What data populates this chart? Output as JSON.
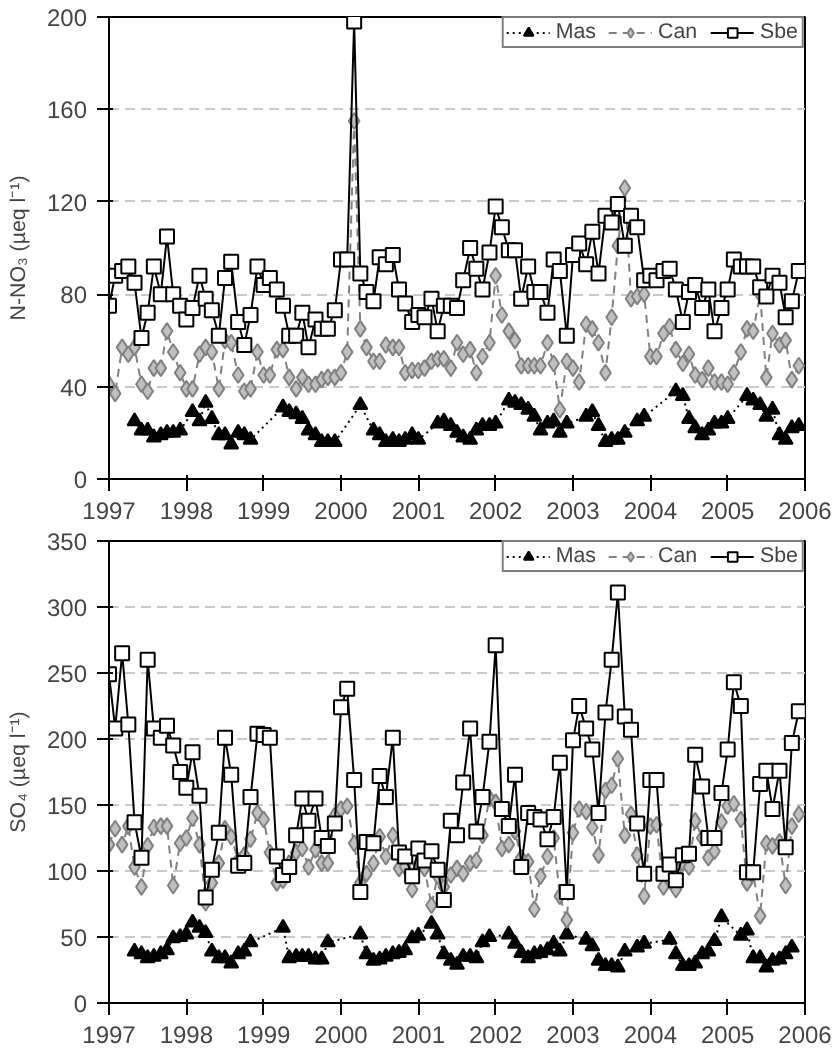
{
  "chart_data": [
    {
      "type": "line",
      "ylabel": "N-NO₃ (µeq l⁻¹)",
      "xlim": [
        1997,
        2006
      ],
      "xticks": [
        1997,
        1998,
        1999,
        2000,
        2001,
        2002,
        2003,
        2004,
        2005,
        2006
      ],
      "ylim": [
        0,
        200
      ],
      "yticks": [
        0,
        40,
        80,
        120,
        160,
        200
      ],
      "grid": "y",
      "legend": "top right",
      "x": [
        1997,
        1997.08,
        1997.17,
        1997.25,
        1997.33,
        1997.42,
        1997.5,
        1997.58,
        1997.67,
        1997.75,
        1997.83,
        1997.92,
        1998,
        1998.08,
        1998.17,
        1998.25,
        1998.33,
        1998.42,
        1998.5,
        1998.58,
        1998.67,
        1998.75,
        1998.83,
        1998.92,
        1999,
        1999.08,
        1999.17,
        1999.25,
        1999.33,
        1999.42,
        1999.5,
        1999.58,
        1999.67,
        1999.75,
        1999.83,
        1999.92,
        2000,
        2000.08,
        2000.17,
        2000.25,
        2000.33,
        2000.42,
        2000.5,
        2000.58,
        2000.67,
        2000.75,
        2000.83,
        2000.92,
        2001,
        2001.08,
        2001.17,
        2001.25,
        2001.33,
        2001.42,
        2001.5,
        2001.58,
        2001.67,
        2001.75,
        2001.83,
        2001.92,
        2002,
        2002.08,
        2002.17,
        2002.25,
        2002.33,
        2002.42,
        2002.5,
        2002.58,
        2002.67,
        2002.75,
        2002.83,
        2002.92,
        2003,
        2003.08,
        2003.17,
        2003.25,
        2003.33,
        2003.42,
        2003.5,
        2003.58,
        2003.67,
        2003.75,
        2003.83,
        2003.92,
        2004,
        2004.08,
        2004.17,
        2004.25,
        2004.33,
        2004.42,
        2004.5,
        2004.58,
        2004.67,
        2004.75,
        2004.83,
        2004.92,
        2005,
        2005.08,
        2005.17,
        2005.25,
        2005.33,
        2005.42,
        2005.5,
        2005.58,
        2005.67,
        2005.75,
        2005.83,
        2005.92
      ],
      "series": [
        {
          "name": "Mas",
          "color": "#000000",
          "marker": "triangle",
          "line_style": "dotted",
          "x": [
            1997.33,
            1997.42,
            1997.5,
            1997.58,
            1997.67,
            1997.75,
            1997.83,
            1997.92,
            1998.08,
            1998.17,
            1998.25,
            1998.33,
            1998.42,
            1998.5,
            1998.58,
            1998.67,
            1998.75,
            1998.83,
            1999.25,
            1999.33,
            1999.42,
            1999.5,
            1999.58,
            1999.67,
            1999.75,
            1999.83,
            1999.92,
            2000.25,
            2000.42,
            2000.5,
            2000.58,
            2000.67,
            2000.75,
            2000.83,
            2000.92,
            2001,
            2001.25,
            2001.33,
            2001.42,
            2001.5,
            2001.58,
            2001.67,
            2001.75,
            2001.83,
            2001.92,
            2002,
            2002.17,
            2002.25,
            2002.33,
            2002.42,
            2002.5,
            2002.58,
            2002.67,
            2002.75,
            2002.83,
            2002.92,
            2003.17,
            2003.25,
            2003.33,
            2003.42,
            2003.5,
            2003.58,
            2003.67,
            2003.83,
            2003.92,
            2004.33,
            2004.42,
            2004.5,
            2004.58,
            2004.67,
            2004.75,
            2004.83,
            2004.92,
            2005,
            2005.25,
            2005.33,
            2005.42,
            2005.5,
            2005.58,
            2005.67,
            2005.75,
            2005.83,
            2005.92
          ],
          "values": [
            25,
            21,
            21,
            18,
            19,
            20,
            20,
            21,
            29,
            25,
            33,
            26,
            19,
            19,
            15,
            20,
            19,
            17,
            31,
            29,
            28,
            26,
            21,
            19,
            16,
            16,
            16,
            32,
            21,
            19,
            16,
            17,
            16,
            17,
            19,
            17,
            24,
            25,
            23,
            20,
            18,
            17,
            21,
            23,
            23,
            24,
            34,
            33,
            32,
            30,
            27,
            21,
            24,
            25,
            20,
            24,
            27,
            29,
            23,
            16,
            17,
            17,
            20,
            25,
            27,
            38,
            36,
            26,
            22,
            19,
            21,
            24,
            24,
            26,
            36,
            34,
            32,
            27,
            30,
            19,
            17,
            22,
            23
          ]
        },
        {
          "name": "Can",
          "color": "#808080",
          "marker": "diamond",
          "line_style": "dashed",
          "values": [
            41,
            37,
            57,
            54,
            57,
            41,
            38,
            48,
            48,
            64,
            55,
            46,
            39,
            39,
            54,
            57,
            55,
            39,
            60,
            59,
            45,
            38,
            39,
            55,
            45,
            45,
            56,
            56,
            44,
            39,
            44,
            41,
            41,
            43,
            44,
            44,
            46,
            55,
            155,
            65,
            57,
            51,
            51,
            58,
            57,
            57,
            46,
            47,
            47,
            48,
            51,
            52,
            52,
            48,
            59,
            54,
            56,
            46,
            53,
            59,
            88,
            71,
            64,
            60,
            49,
            49,
            49,
            49,
            59,
            50,
            30,
            51,
            48,
            42,
            67,
            65,
            59,
            46,
            70,
            101,
            126,
            78,
            79,
            80,
            53,
            53,
            63,
            66,
            56,
            50,
            54,
            45,
            43,
            48,
            42,
            42,
            41,
            46,
            55,
            65,
            64,
            80,
            44,
            63,
            58,
            60,
            43,
            49
          ]
        },
        {
          "name": "Sbe",
          "color": "#000000",
          "marker": "square",
          "line_style": "solid",
          "values": [
            75,
            88,
            90,
            92,
            85,
            61,
            72,
            92,
            80,
            105,
            80,
            75,
            69,
            74,
            88,
            78,
            73,
            62,
            87,
            94,
            68,
            58,
            71,
            92,
            84,
            87,
            82,
            75,
            62,
            62,
            72,
            57,
            69,
            65,
            65,
            73,
            95,
            95,
            198,
            89,
            81,
            77,
            96,
            93,
            97,
            82,
            76,
            68,
            71,
            70,
            78,
            64,
            75,
            75,
            74,
            86,
            100,
            91,
            82,
            98,
            118,
            109,
            99,
            99,
            78,
            92,
            81,
            81,
            72,
            95,
            90,
            62,
            97,
            102,
            93,
            107,
            89,
            114,
            111,
            119,
            101,
            114,
            109,
            86,
            88,
            86,
            90,
            91,
            82,
            68,
            81,
            84,
            74,
            82,
            64,
            74,
            82,
            95,
            92,
            92,
            92,
            83,
            79,
            88,
            85,
            70,
            77,
            90
          ]
        }
      ]
    },
    {
      "type": "line",
      "ylabel": "SO₄ (µeq l⁻¹)",
      "xlim": [
        1997,
        2006
      ],
      "xticks": [
        1997,
        1998,
        1999,
        2000,
        2001,
        2002,
        2003,
        2004,
        2005,
        2006
      ],
      "ylim": [
        0,
        350
      ],
      "yticks": [
        0,
        50,
        100,
        150,
        200,
        250,
        300,
        350
      ],
      "grid": "y",
      "legend": "top right",
      "x": [
        1997,
        1997.08,
        1997.17,
        1997.25,
        1997.33,
        1997.42,
        1997.5,
        1997.58,
        1997.67,
        1997.75,
        1997.83,
        1997.92,
        1998,
        1998.08,
        1998.17,
        1998.25,
        1998.33,
        1998.42,
        1998.5,
        1998.58,
        1998.67,
        1998.75,
        1998.83,
        1998.92,
        1999,
        1999.08,
        1999.17,
        1999.25,
        1999.33,
        1999.42,
        1999.5,
        1999.58,
        1999.67,
        1999.75,
        1999.83,
        1999.92,
        2000,
        2000.08,
        2000.17,
        2000.25,
        2000.33,
        2000.42,
        2000.5,
        2000.58,
        2000.67,
        2000.75,
        2000.83,
        2000.92,
        2001,
        2001.08,
        2001.17,
        2001.25,
        2001.33,
        2001.42,
        2001.5,
        2001.58,
        2001.67,
        2001.75,
        2001.83,
        2001.92,
        2002,
        2002.08,
        2002.17,
        2002.25,
        2002.33,
        2002.42,
        2002.5,
        2002.58,
        2002.67,
        2002.75,
        2002.83,
        2002.92,
        2003,
        2003.08,
        2003.17,
        2003.25,
        2003.33,
        2003.42,
        2003.5,
        2003.58,
        2003.67,
        2003.75,
        2003.83,
        2003.92,
        2004,
        2004.08,
        2004.17,
        2004.25,
        2004.33,
        2004.42,
        2004.5,
        2004.58,
        2004.67,
        2004.75,
        2004.83,
        2004.92,
        2005,
        2005.08,
        2005.17,
        2005.25,
        2005.33,
        2005.42,
        2005.5,
        2005.58,
        2005.67,
        2005.75,
        2005.83,
        2005.92
      ],
      "series": [
        {
          "name": "Mas",
          "color": "#000000",
          "marker": "triangle",
          "line_style": "dotted",
          "x": [
            1997.33,
            1997.42,
            1997.5,
            1997.58,
            1997.67,
            1997.75,
            1997.83,
            1997.92,
            1998,
            1998.08,
            1998.17,
            1998.25,
            1998.33,
            1998.42,
            1998.5,
            1998.58,
            1998.67,
            1998.75,
            1998.83,
            1999.25,
            1999.33,
            1999.42,
            1999.5,
            1999.58,
            1999.67,
            1999.75,
            1999.83,
            2000.25,
            2000.33,
            2000.42,
            2000.5,
            2000.58,
            2000.67,
            2000.75,
            2000.83,
            2000.92,
            2001,
            2001.17,
            2001.25,
            2001.33,
            2001.42,
            2001.5,
            2001.58,
            2001.67,
            2001.75,
            2001.83,
            2001.92,
            2002.17,
            2002.25,
            2002.33,
            2002.42,
            2002.5,
            2002.58,
            2002.67,
            2002.75,
            2002.83,
            2002.92,
            2003.17,
            2003.25,
            2003.33,
            2003.42,
            2003.5,
            2003.58,
            2003.67,
            2003.83,
            2003.92,
            2004.25,
            2004.33,
            2004.42,
            2004.5,
            2004.58,
            2004.67,
            2004.75,
            2004.83,
            2004.92,
            2005.17,
            2005.25,
            2005.33,
            2005.42,
            2005.5,
            2005.58,
            2005.67,
            2005.75,
            2005.83
          ],
          "values": [
            39,
            37,
            34,
            35,
            37,
            40,
            49,
            50,
            52,
            61,
            57,
            53,
            39,
            34,
            34,
            30,
            37,
            39,
            46,
            57,
            34,
            35,
            35,
            35,
            33,
            33,
            46,
            52,
            37,
            32,
            33,
            35,
            37,
            38,
            40,
            49,
            51,
            60,
            52,
            37,
            32,
            29,
            35,
            35,
            34,
            46,
            50,
            52,
            45,
            38,
            34,
            37,
            38,
            40,
            45,
            39,
            52,
            48,
            43,
            32,
            28,
            28,
            27,
            39,
            42,
            45,
            48,
            37,
            28,
            28,
            30,
            37,
            39,
            47,
            65,
            51,
            55,
            34,
            34,
            27,
            32,
            33,
            37,
            42
          ]
        },
        {
          "name": "Can",
          "color": "#808080",
          "marker": "diamond",
          "line_style": "dashed",
          "values": [
            120,
            132,
            120,
            134,
            103,
            88,
            119,
            133,
            134,
            134,
            89,
            121,
            125,
            140,
            120,
            76,
            91,
            106,
            132,
            126,
            108,
            112,
            124,
            144,
            139,
            114,
            91,
            93,
            106,
            114,
            117,
            103,
            116,
            106,
            106,
            142,
            147,
            149,
            121,
            91,
            98,
            106,
            126,
            111,
            127,
            102,
            103,
            86,
            105,
            102,
            74,
            96,
            88,
            97,
            102,
            98,
            106,
            108,
            127,
            155,
            152,
            117,
            120,
            130,
            110,
            107,
            71,
            96,
            111,
            125,
            81,
            63,
            129,
            147,
            145,
            133,
            112,
            161,
            165,
            185,
            127,
            143,
            112,
            81,
            134,
            135,
            88,
            93,
            86,
            106,
            103,
            138,
            125,
            110,
            115,
            137,
            149,
            151,
            139,
            91,
            98,
            66,
            121,
            119,
            122,
            89,
            134,
            143
          ]
        },
        {
          "name": "Sbe",
          "color": "#000000",
          "marker": "square",
          "line_style": "solid",
          "values": [
            249,
            208,
            265,
            211,
            137,
            110,
            260,
            208,
            201,
            210,
            195,
            175,
            163,
            190,
            157,
            80,
            101,
            129,
            201,
            173,
            104,
            106,
            156,
            204,
            203,
            201,
            111,
            97,
            103,
            127,
            155,
            138,
            155,
            125,
            119,
            136,
            224,
            238,
            169,
            84,
            122,
            121,
            172,
            156,
            201,
            114,
            111,
            96,
            117,
            108,
            115,
            101,
            78,
            138,
            127,
            167,
            208,
            130,
            156,
            198,
            271,
            147,
            134,
            173,
            103,
            144,
            141,
            139,
            124,
            141,
            182,
            84,
            199,
            225,
            208,
            192,
            144,
            220,
            260,
            311,
            217,
            207,
            136,
            98,
            169,
            169,
            98,
            105,
            93,
            112,
            113,
            188,
            164,
            125,
            125,
            159,
            192,
            243,
            225,
            99,
            99,
            166,
            176,
            147,
            176,
            118,
            197,
            221
          ]
        }
      ]
    }
  ]
}
